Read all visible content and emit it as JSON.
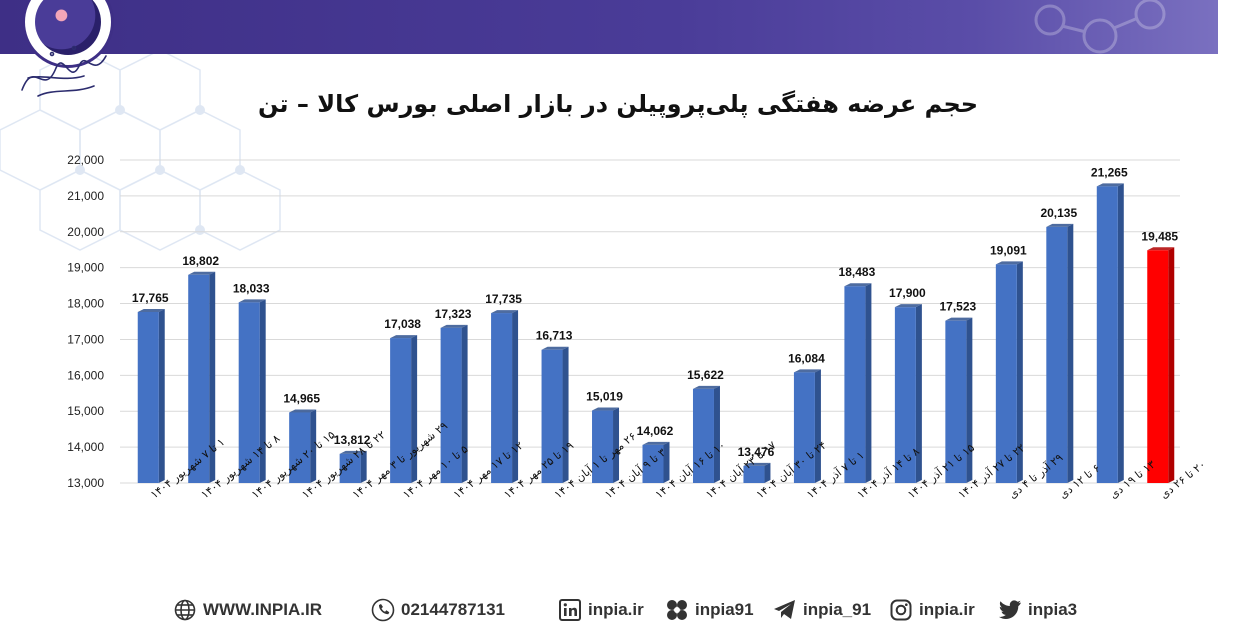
{
  "chart_data": {
    "type": "bar",
    "title": "حجم عرضه هفتگی پلی‌پروپیلن در بازار اصلی بورس کالا – تن",
    "categories": [
      "۱ تا ۷ شهریور ۱۴۰۴",
      "۸ تا ۱۴ شهریور ۱۴۰۴",
      "۱۵ تا ۲۰ شهریور ۱۴۰۴",
      "۲۲ تا ۲۸ شهریور ۱۴۰۴",
      "۲۹ شهریور تا ۳ مهر ۱۴۰۴",
      "۵ تا ۱۰ مهر ۱۴۰۴",
      "۱۲ تا ۱۷ مهر ۱۴۰۴",
      "۱۹ تا ۲۵ مهر ۱۴۰۴",
      "۲۶ مهر تا ۱ آبان ۱۴۰۴",
      "۳ تا ۹ آبان ۱۴۰۴",
      "۱۰ تا ۱۶ آبان ۱۴۰۴",
      "۱۷ تا ۲۳ آبان ۱۴۰۴",
      "۲۴ تا ۳۰ آبان ۱۴۰۴",
      "۱ تا ۷ آذر ۱۴۰۴",
      "۸ تا ۱۴ آذر ۱۴۰۴",
      "۱۵ تا ۲۱ آذر ۱۴۰۴",
      "۲۲ تا ۲۷ آذر ۱۴۰۴",
      "۲۹ آذر تا ۴ دی",
      "۶ تا ۱۲ دی",
      "۱۳ تا ۱۹ دی",
      "۲۰ تا ۲۶ دی"
    ],
    "values": [
      17765,
      18802,
      18033,
      14965,
      13812,
      17038,
      17323,
      17735,
      16713,
      15019,
      14062,
      15622,
      13476,
      16084,
      18483,
      17900,
      17523,
      19091,
      20135,
      21265,
      19485
    ],
    "value_labels": [
      "17,765",
      "18,802",
      "18,033",
      "14,965",
      "13,812",
      "17,038",
      "17,323",
      "17,735",
      "16,713",
      "15,019",
      "14,062",
      "15,622",
      "13,476",
      "16,084",
      "18,483",
      "17,900",
      "17,523",
      "19,091",
      "20,135",
      "21,265",
      "19,485"
    ],
    "ylim": [
      13000,
      22000
    ],
    "yticks": [
      13000,
      14000,
      15000,
      16000,
      17000,
      18000,
      19000,
      20000,
      21000,
      22000
    ],
    "ytick_labels": [
      "13,000",
      "14,000",
      "15,000",
      "16,000",
      "17,000",
      "18,000",
      "19,000",
      "20,000",
      "21,000",
      "22,000"
    ],
    "grid": true,
    "colors": {
      "bar": "#4472c4",
      "bar_dark": "#2f528f",
      "highlight": "#ff0000",
      "highlight_dark": "#b00000"
    },
    "highlight_index": 20
  },
  "footer": {
    "website": "WWW.INPIA.IR",
    "phone": "02144787131",
    "linkedin": "inpia.ir",
    "other": "inpia91",
    "telegram": "inpia_91",
    "instagram": "inpia.ir",
    "twitter": "inpia3"
  }
}
